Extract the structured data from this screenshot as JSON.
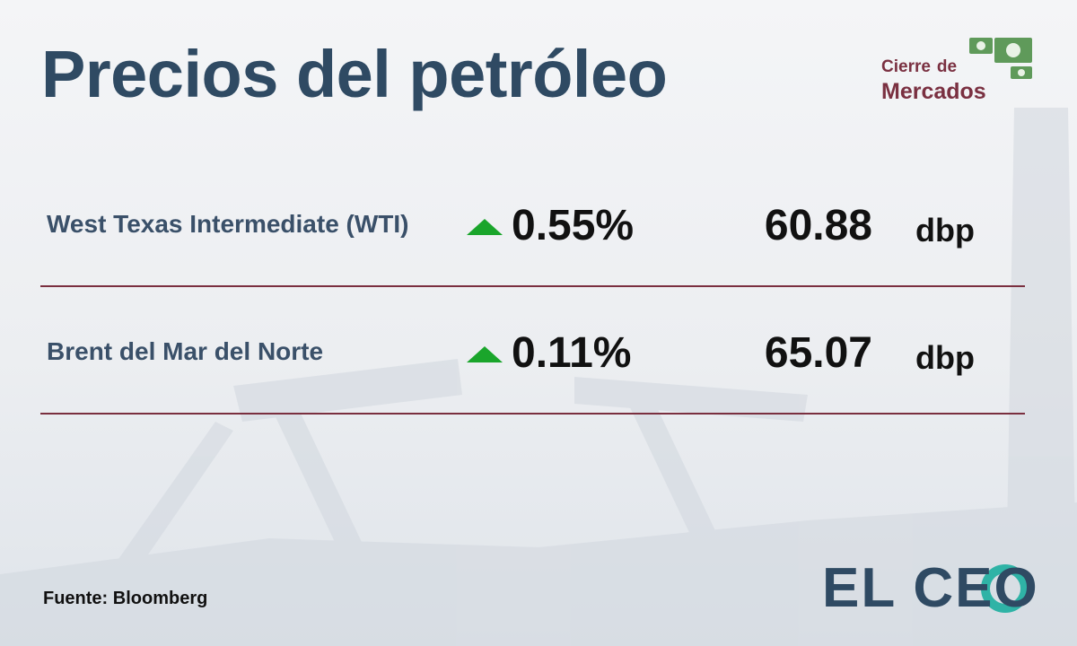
{
  "header": {
    "title": "Precios del petróleo",
    "badge": {
      "line1": "Cierre",
      "small": "de",
      "line2": "Mercados"
    }
  },
  "rows": [
    {
      "name": "West Texas Intermediate (WTI)",
      "change": "0.55%",
      "price": "60.88",
      "unit": "dbp"
    },
    {
      "name": "Brent del Mar del Norte",
      "change": "0.11%",
      "price": "65.07",
      "unit": "dbp"
    }
  ],
  "footer": {
    "source": "Fuente: Bloomberg",
    "logo": "EL CEO"
  }
}
